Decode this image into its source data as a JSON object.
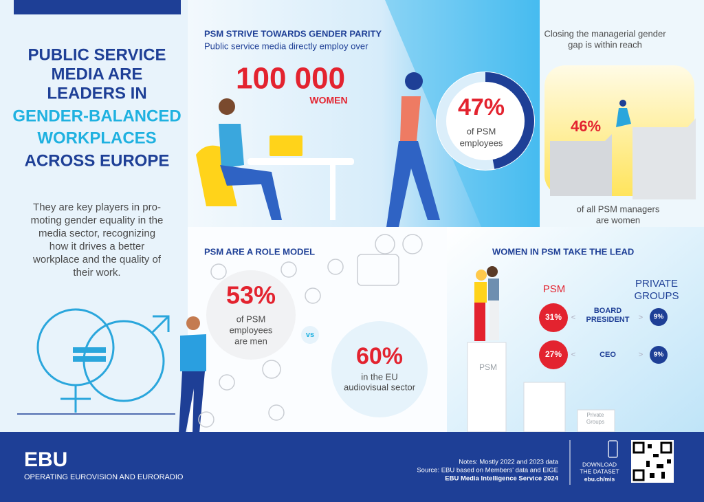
{
  "header": {
    "title_lines": [
      "PUBLIC SERVICE",
      "MEDIA ARE",
      "LEADERS IN",
      "GENDER-BALANCED",
      "WORKPLACES",
      "ACROSS EUROPE"
    ],
    "intro_lines": [
      "They are key players in pro-",
      "moting gender equality in the",
      "media sector, recognizing",
      "how it drives a better",
      "workplace and the quality of",
      "their work."
    ]
  },
  "parity": {
    "heading": "PSM STRIVE TOWARDS GENDER PARITY",
    "subheading": "Public service media directly employ over",
    "big_number": "100 000",
    "big_label": "WOMEN",
    "donut": {
      "value": 47,
      "label": "47%"
    },
    "donut_lines": [
      "of PSM",
      "employees"
    ]
  },
  "managers": {
    "intro_lines": [
      "Closing the managerial gender",
      "gap is within reach"
    ],
    "share": "46%",
    "caption_lines": [
      "of all PSM managers",
      "are women"
    ]
  },
  "role_model": {
    "heading": "PSM ARE A ROLE MODEL",
    "psm_share": "53%",
    "psm_lines": [
      "of PSM",
      "employees",
      "are men"
    ],
    "vs": "vs",
    "eu_share": "60%",
    "eu_lines": [
      "in the EU",
      "audiovisual sector"
    ]
  },
  "lead": {
    "heading": "WOMEN IN PSM TAKE THE LEAD",
    "psm_header": "PSM",
    "private_header": [
      "PRIVATE",
      "GROUPS"
    ],
    "rows": [
      {
        "label": [
          "BOARD",
          "PRESIDENT"
        ],
        "psm": "31%",
        "private": "9%"
      },
      {
        "label": [
          "CEO"
        ],
        "psm": "27%",
        "private": "9%"
      }
    ],
    "podium_psm": "PSM",
    "podium_private": [
      "Private",
      "Groups"
    ]
  },
  "footer": {
    "brand": "EBU",
    "tagline": "OPERATING EUROVISION AND EURORADIO",
    "notes": [
      "Notes: Mostly 2022 and 2023 data",
      "Source: EBU based on Members' data and EIGE",
      "EBU Media Intelligence Service 2024"
    ],
    "download": [
      "DOWNLOAD",
      "THE DATASET",
      "ebu.ch/mis"
    ]
  }
}
